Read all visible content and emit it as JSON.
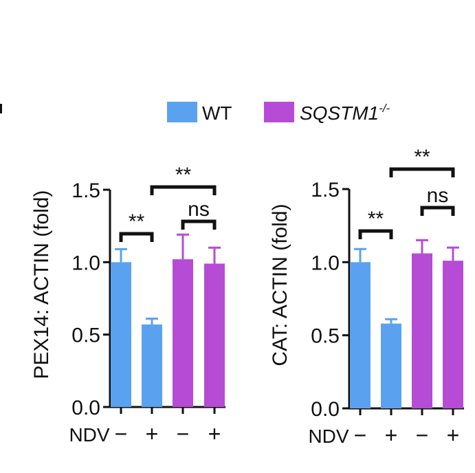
{
  "legend": [
    {
      "label": "WT",
      "color": "#5aa2f0"
    },
    {
      "label": "SQSTM1",
      "superscript": "-/-",
      "italic": true,
      "color": "#b64bd6"
    }
  ],
  "chart_data": [
    {
      "type": "bar",
      "ylabel": "PEX14: ACTIN (fold)",
      "ylim": [
        0,
        1.5
      ],
      "yticks": [
        "0.0",
        "0.5",
        "1.0",
        "1.5"
      ],
      "xlabel": "NDV",
      "categories": [
        "−",
        "+",
        "−",
        "+"
      ],
      "values": [
        1.0,
        0.57,
        1.02,
        0.99
      ],
      "errors": [
        0.09,
        0.04,
        0.17,
        0.11
      ],
      "colors": [
        "#5aa2f0",
        "#5aa2f0",
        "#b64bd6",
        "#b64bd6"
      ],
      "significance": [
        {
          "from": 0,
          "to": 1,
          "label": "**"
        },
        {
          "from": 2,
          "to": 3,
          "label": "ns"
        },
        {
          "from": 1,
          "to": 3,
          "label": "**"
        }
      ]
    },
    {
      "type": "bar",
      "ylabel": "CAT: ACTIN (fold)",
      "ylim": [
        0,
        1.5
      ],
      "yticks": [
        "0.0",
        "0.5",
        "1.0",
        "1.5"
      ],
      "xlabel": "NDV",
      "categories": [
        "−",
        "+",
        "−",
        "+"
      ],
      "values": [
        1.0,
        0.58,
        1.06,
        1.01
      ],
      "errors": [
        0.09,
        0.03,
        0.09,
        0.09
      ],
      "colors": [
        "#5aa2f0",
        "#5aa2f0",
        "#b64bd6",
        "#b64bd6"
      ],
      "significance": [
        {
          "from": 0,
          "to": 1,
          "label": "**"
        },
        {
          "from": 2,
          "to": 3,
          "label": "ns"
        },
        {
          "from": 1,
          "to": 3,
          "label": "**"
        }
      ]
    }
  ]
}
